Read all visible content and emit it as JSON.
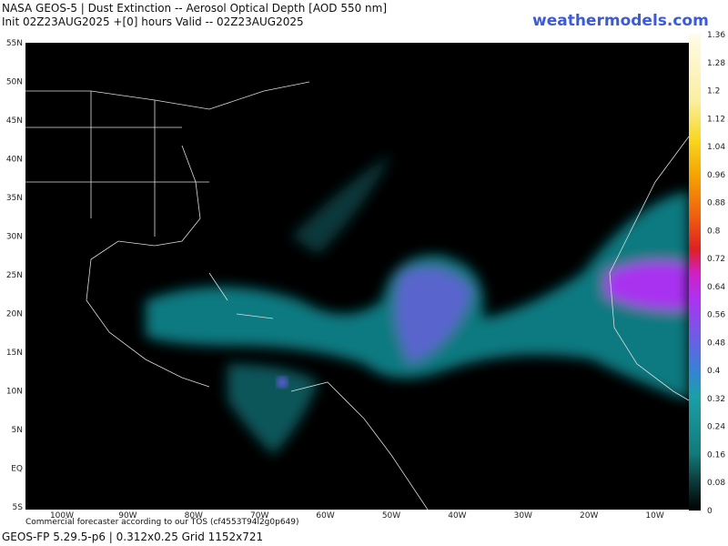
{
  "header": {
    "title": "NASA GEOS-5 | Dust Extinction -- Aerosol Optical Depth [AOD 550 nm]",
    "subtitle": "Init 02Z23AUG2025 +[0] hours Valid -- 02Z23AUG2025",
    "brand": "weathermodels.com"
  },
  "map": {
    "lat_labels": [
      "55N",
      "50N",
      "45N",
      "40N",
      "35N",
      "30N",
      "25N",
      "20N",
      "15N",
      "10N",
      "5N",
      "EQ",
      "5S"
    ],
    "lon_labels": [
      "100W",
      "90W",
      "80W",
      "70W",
      "60W",
      "50W",
      "40W",
      "30W",
      "20W",
      "10W"
    ]
  },
  "colorbar": {
    "labels": [
      "0",
      "0.08",
      "0.16",
      "0.24",
      "0.32",
      "0.4",
      "0.48",
      "0.56",
      "0.64",
      "0.72",
      "0.8",
      "0.88",
      "0.96",
      "1.04",
      "1.12",
      "1.2",
      "1.28",
      "1.36"
    ]
  },
  "footer": {
    "notice": "Commercial forecaster according to our TOS (cf4553T94l2g0p649)",
    "model": "GEOS-FP 5.29.5-p6 | 0.312x0.25 Grid 1152x721"
  }
}
